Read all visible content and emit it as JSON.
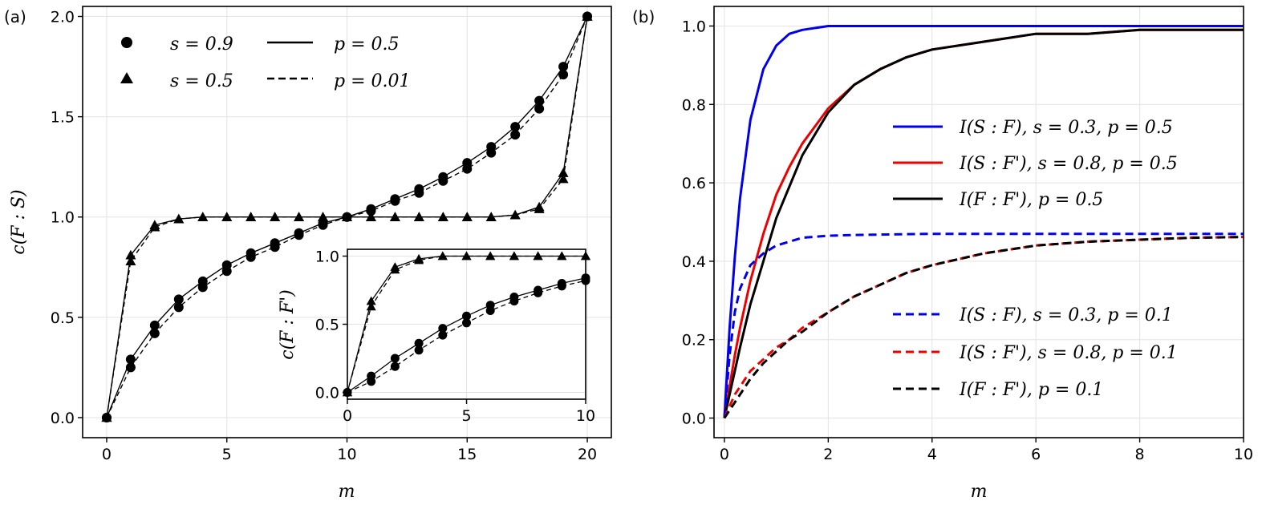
{
  "chart_data": [
    {
      "panel": "(a)",
      "type": "line",
      "xlabel": "m",
      "ylabel": "c(F : S)",
      "xlim": [
        -1,
        21
      ],
      "ylim": [
        -0.1,
        2.05
      ],
      "xticks": [
        "0",
        "5",
        "10",
        "15",
        "20"
      ],
      "yticks": [
        "0.0",
        "0.5",
        "1.0",
        "1.5",
        "2.0"
      ],
      "legend": {
        "markers": [
          {
            "label": "s = 0.9",
            "marker": "circle"
          },
          {
            "label": "s = 0.5",
            "marker": "triangle"
          }
        ],
        "lines": [
          {
            "label": "p = 0.5",
            "style": "solid"
          },
          {
            "label": "p = 0.01",
            "style": "dashed"
          }
        ],
        "position": "top-left"
      },
      "x": [
        0,
        1,
        2,
        3,
        4,
        5,
        6,
        7,
        8,
        9,
        10,
        11,
        12,
        13,
        14,
        15,
        16,
        17,
        18,
        19,
        20
      ],
      "series": [
        {
          "name": "s = 0.9, p = 0.5",
          "marker": "circle",
          "style": "solid",
          "values": [
            0,
            0.29,
            0.46,
            0.59,
            0.68,
            0.76,
            0.82,
            0.87,
            0.92,
            0.97,
            1.0,
            1.04,
            1.09,
            1.14,
            1.2,
            1.27,
            1.35,
            1.45,
            1.58,
            1.75,
            2.0
          ]
        },
        {
          "name": "s = 0.9, p = 0.01",
          "marker": "circle",
          "style": "dashed",
          "values": [
            0,
            0.25,
            0.42,
            0.55,
            0.65,
            0.73,
            0.8,
            0.85,
            0.91,
            0.96,
            1.0,
            1.03,
            1.08,
            1.12,
            1.18,
            1.24,
            1.32,
            1.41,
            1.54,
            1.71,
            2.0
          ]
        },
        {
          "name": "s = 0.5, p = 0.5",
          "marker": "triangle",
          "style": "solid",
          "values": [
            0,
            0.81,
            0.96,
            0.99,
            1.0,
            1.0,
            1.0,
            1.0,
            1.0,
            1.0,
            1.0,
            1.0,
            1.0,
            1.0,
            1.0,
            1.0,
            1.0,
            1.01,
            1.05,
            1.22,
            2.0
          ]
        },
        {
          "name": "s = 0.5, p = 0.01",
          "marker": "triangle",
          "style": "dashed",
          "values": [
            0,
            0.78,
            0.95,
            0.99,
            1.0,
            1.0,
            1.0,
            1.0,
            1.0,
            1.0,
            1.0,
            1.0,
            1.0,
            1.0,
            1.0,
            1.0,
            1.0,
            1.01,
            1.04,
            1.19,
            2.0
          ]
        }
      ],
      "inset": {
        "ylabel": "c(F : F')",
        "xlim": [
          0,
          10
        ],
        "ylim": [
          -0.05,
          1.05
        ],
        "xticks": [
          "0",
          "5",
          "10"
        ],
        "yticks": [
          "0.0",
          "0.5",
          "1.0"
        ],
        "x": [
          0,
          1,
          2,
          3,
          4,
          5,
          6,
          7,
          8,
          9,
          10
        ],
        "series": [
          {
            "name": "s = 0.9, p = 0.5",
            "marker": "circle",
            "style": "solid",
            "values": [
              0,
              0.12,
              0.25,
              0.36,
              0.47,
              0.56,
              0.64,
              0.7,
              0.75,
              0.8,
              0.84
            ]
          },
          {
            "name": "s = 0.9, p = 0.01",
            "marker": "circle",
            "style": "dashed",
            "values": [
              0,
              0.08,
              0.19,
              0.31,
              0.42,
              0.51,
              0.6,
              0.67,
              0.73,
              0.78,
              0.82
            ]
          },
          {
            "name": "s = 0.5, p = 0.5",
            "marker": "triangle",
            "style": "solid",
            "values": [
              0,
              0.67,
              0.92,
              0.98,
              1.0,
              1.0,
              1.0,
              1.0,
              1.0,
              1.0,
              1.0
            ]
          },
          {
            "name": "s = 0.5, p = 0.01",
            "marker": "triangle",
            "style": "dashed",
            "values": [
              0,
              0.63,
              0.9,
              0.97,
              1.0,
              1.0,
              1.0,
              1.0,
              1.0,
              1.0,
              1.0
            ]
          }
        ]
      }
    },
    {
      "panel": "(b)",
      "type": "line",
      "xlabel": "m",
      "ylabel": "",
      "xlim": [
        -0.2,
        10
      ],
      "ylim": [
        -0.05,
        1.05
      ],
      "xticks": [
        "0",
        "2",
        "4",
        "6",
        "8",
        "10"
      ],
      "yticks": [
        "0.0",
        "0.2",
        "0.4",
        "0.6",
        "0.8",
        "1.0"
      ],
      "x": [
        0,
        0.1,
        0.2,
        0.3,
        0.5,
        0.75,
        1,
        1.25,
        1.5,
        2,
        2.5,
        3,
        3.5,
        4,
        5,
        6,
        7,
        8,
        9,
        10
      ],
      "series": [
        {
          "name": "I(S : F), s = 0.3, p = 0.5",
          "color": "#0000ee",
          "style": "solid",
          "values": [
            0,
            0.23,
            0.41,
            0.56,
            0.76,
            0.89,
            0.95,
            0.98,
            0.99,
            1.0,
            1.0,
            1.0,
            1.0,
            1.0,
            1.0,
            1.0,
            1.0,
            1.0,
            1.0,
            1.0
          ]
        },
        {
          "name": "I(S : F'), s = 0.8, p = 0.5",
          "color": "#ee0000",
          "style": "solid",
          "values": [
            0,
            0.08,
            0.16,
            0.23,
            0.35,
            0.47,
            0.57,
            0.64,
            0.7,
            0.79,
            0.85,
            0.89,
            0.92,
            0.94,
            0.96,
            0.98,
            0.98,
            0.99,
            0.99,
            0.99
          ]
        },
        {
          "name": "I(F : F'), p = 0.5",
          "color": "#000000",
          "style": "solid",
          "values": [
            0,
            0.06,
            0.12,
            0.18,
            0.29,
            0.4,
            0.51,
            0.59,
            0.67,
            0.78,
            0.85,
            0.89,
            0.92,
            0.94,
            0.96,
            0.98,
            0.98,
            0.99,
            0.99,
            0.99
          ]
        },
        {
          "name": "I(S : F), s = 0.3, p = 0.1",
          "color": "#0000ee",
          "style": "dashed",
          "values": [
            0,
            0.16,
            0.27,
            0.33,
            0.39,
            0.42,
            0.44,
            0.45,
            0.46,
            0.465,
            0.467,
            0.468,
            0.469,
            0.47,
            0.47,
            0.47,
            0.47,
            0.47,
            0.47,
            0.47
          ]
        },
        {
          "name": "I(S : F'), s = 0.8, p = 0.1",
          "color": "#ee0000",
          "style": "dashed",
          "values": [
            0,
            0.03,
            0.06,
            0.08,
            0.12,
            0.15,
            0.18,
            0.2,
            0.23,
            0.27,
            0.31,
            0.34,
            0.37,
            0.39,
            0.42,
            0.44,
            0.45,
            0.455,
            0.46,
            0.462
          ]
        },
        {
          "name": "I(F : F'), p = 0.1",
          "color": "#000000",
          "style": "dashed",
          "values": [
            0,
            0.02,
            0.04,
            0.06,
            0.1,
            0.14,
            0.17,
            0.2,
            0.22,
            0.27,
            0.31,
            0.34,
            0.37,
            0.39,
            0.42,
            0.44,
            0.45,
            0.455,
            0.46,
            0.462
          ]
        }
      ],
      "legend_upper": [
        "I(S : F), s = 0.3, p = 0.5",
        "I(S : F'), s = 0.8, p = 0.5",
        "I(F : F'), p = 0.5"
      ],
      "legend_lower": [
        "I(S : F), s = 0.3, p = 0.1",
        "I(S : F'), s = 0.8, p = 0.1",
        "I(F : F'), p = 0.1"
      ]
    }
  ]
}
